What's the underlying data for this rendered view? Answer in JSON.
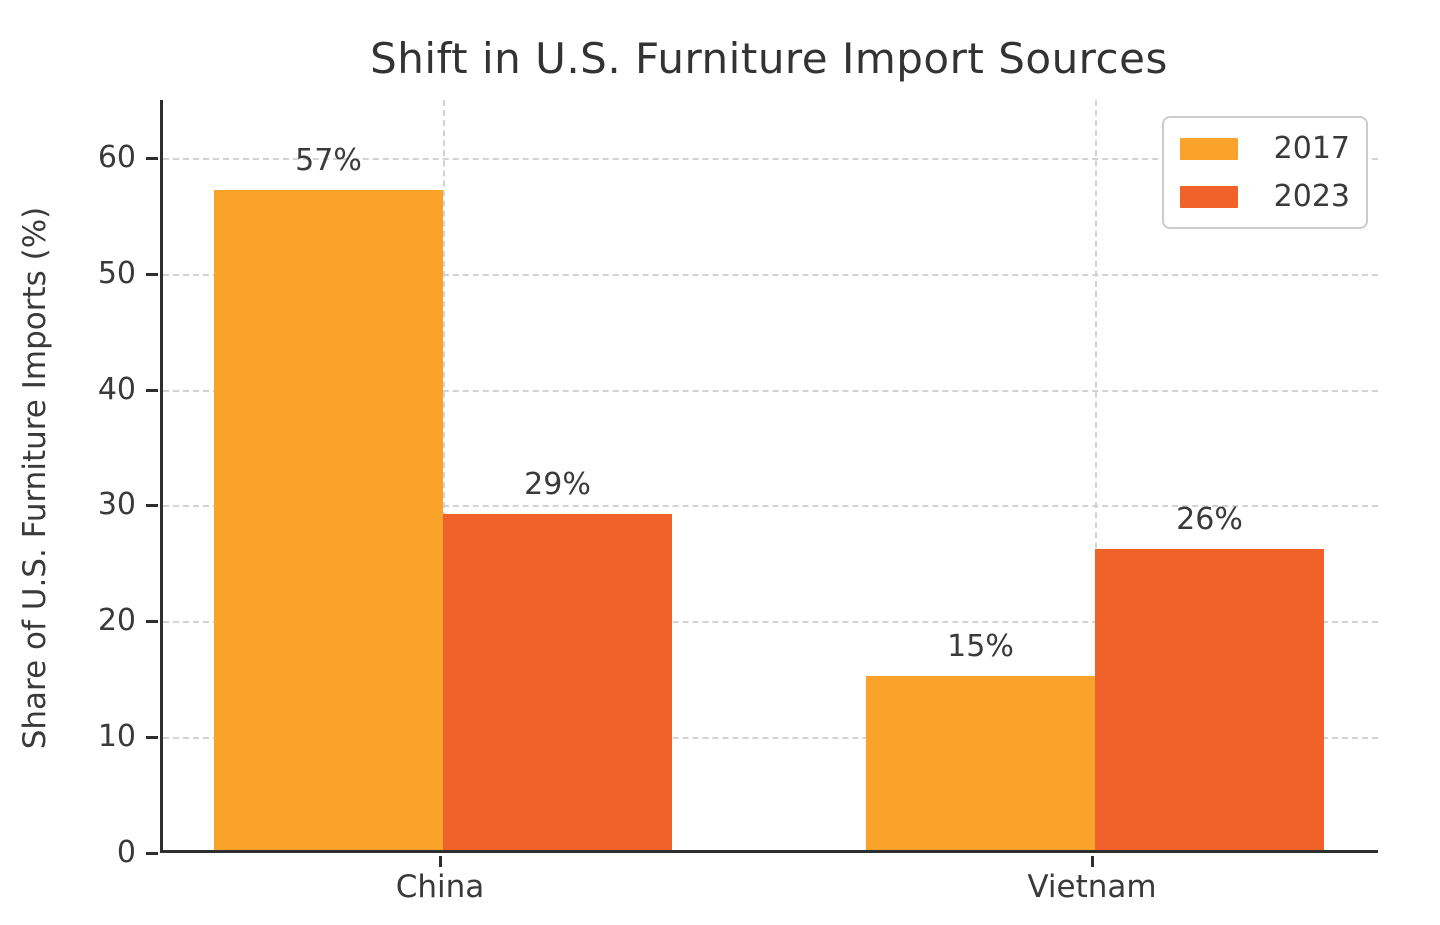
{
  "chart_data": {
    "type": "bar",
    "title": "Shift in U.S. Furniture Import Sources",
    "xlabel": "",
    "ylabel": "Share of U.S. Furniture Imports (%)",
    "categories": [
      "China",
      "Vietnam"
    ],
    "series": [
      {
        "name": "2017",
        "color": "#F9A32B",
        "values": [
          57,
          15
        ],
        "labels": [
          "57%",
          "15%"
        ]
      },
      {
        "name": "2023",
        "color": "#F0622A",
        "values": [
          29,
          26
        ],
        "labels": [
          "29%",
          "26%"
        ]
      }
    ],
    "yticks": [
      0,
      10,
      20,
      30,
      40,
      50,
      60
    ],
    "ylim": [
      0,
      65
    ],
    "grid": {
      "horizontal": true,
      "vertical": true,
      "style": "dashed",
      "color": "#d2d2d2"
    },
    "legend": {
      "position": "upper right",
      "entries": [
        "2017",
        "2023"
      ]
    },
    "colors": {
      "text": "#3a3a3a",
      "title": "#333333",
      "axis": "#2e2e2e",
      "background": "#ffffff"
    }
  }
}
